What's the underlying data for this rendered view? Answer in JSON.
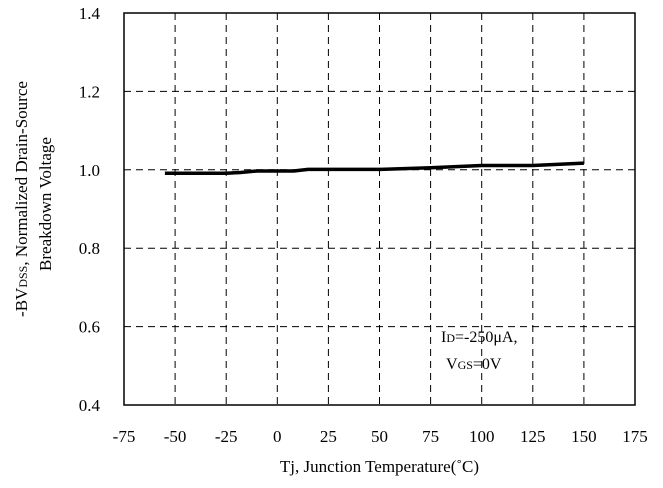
{
  "chart_data": {
    "type": "line",
    "xlabel": "Tj, Junction Temperature(˚C)",
    "ylabel_line1_main": "-BV",
    "ylabel_line1_sub": "DSS",
    "ylabel_line1_rest": ", Normalized Drain-Source",
    "ylabel_line2": "Breakdown Voltage",
    "xlim": [
      -75,
      175
    ],
    "ylim": [
      0.4,
      1.4
    ],
    "x_ticks": [
      -75,
      -50,
      -25,
      0,
      25,
      50,
      75,
      100,
      125,
      150,
      175
    ],
    "x_tick_labels": [
      "-75",
      "-50",
      "-25",
      "0",
      "25",
      "50",
      "75",
      "100",
      "125",
      "150",
      "175"
    ],
    "y_ticks": [
      0.4,
      0.6,
      0.8,
      1.0,
      1.2,
      1.4
    ],
    "y_tick_labels": [
      "0.4",
      "0.6",
      "0.8",
      "1.0",
      "1.2",
      "1.4"
    ],
    "grid": true,
    "grid_style": "dashed",
    "series": [
      {
        "x": [
          -55,
          -40,
          -25,
          -18,
          -10,
          0,
          8,
          15,
          25,
          50,
          75,
          100,
          125,
          150
        ],
        "y": [
          0.991,
          0.991,
          0.991,
          0.993,
          0.997,
          0.997,
          0.997,
          1.001,
          1.001,
          1.001,
          1.005,
          1.011,
          1.011,
          1.017
        ],
        "color": "#000000"
      }
    ],
    "annotation": {
      "line1_main": "I",
      "line1_sub": "D",
      "line1_rest": "=-250μA,",
      "line2_main": "V",
      "line2_sub": "GS",
      "line2_rest": "=0V"
    }
  }
}
